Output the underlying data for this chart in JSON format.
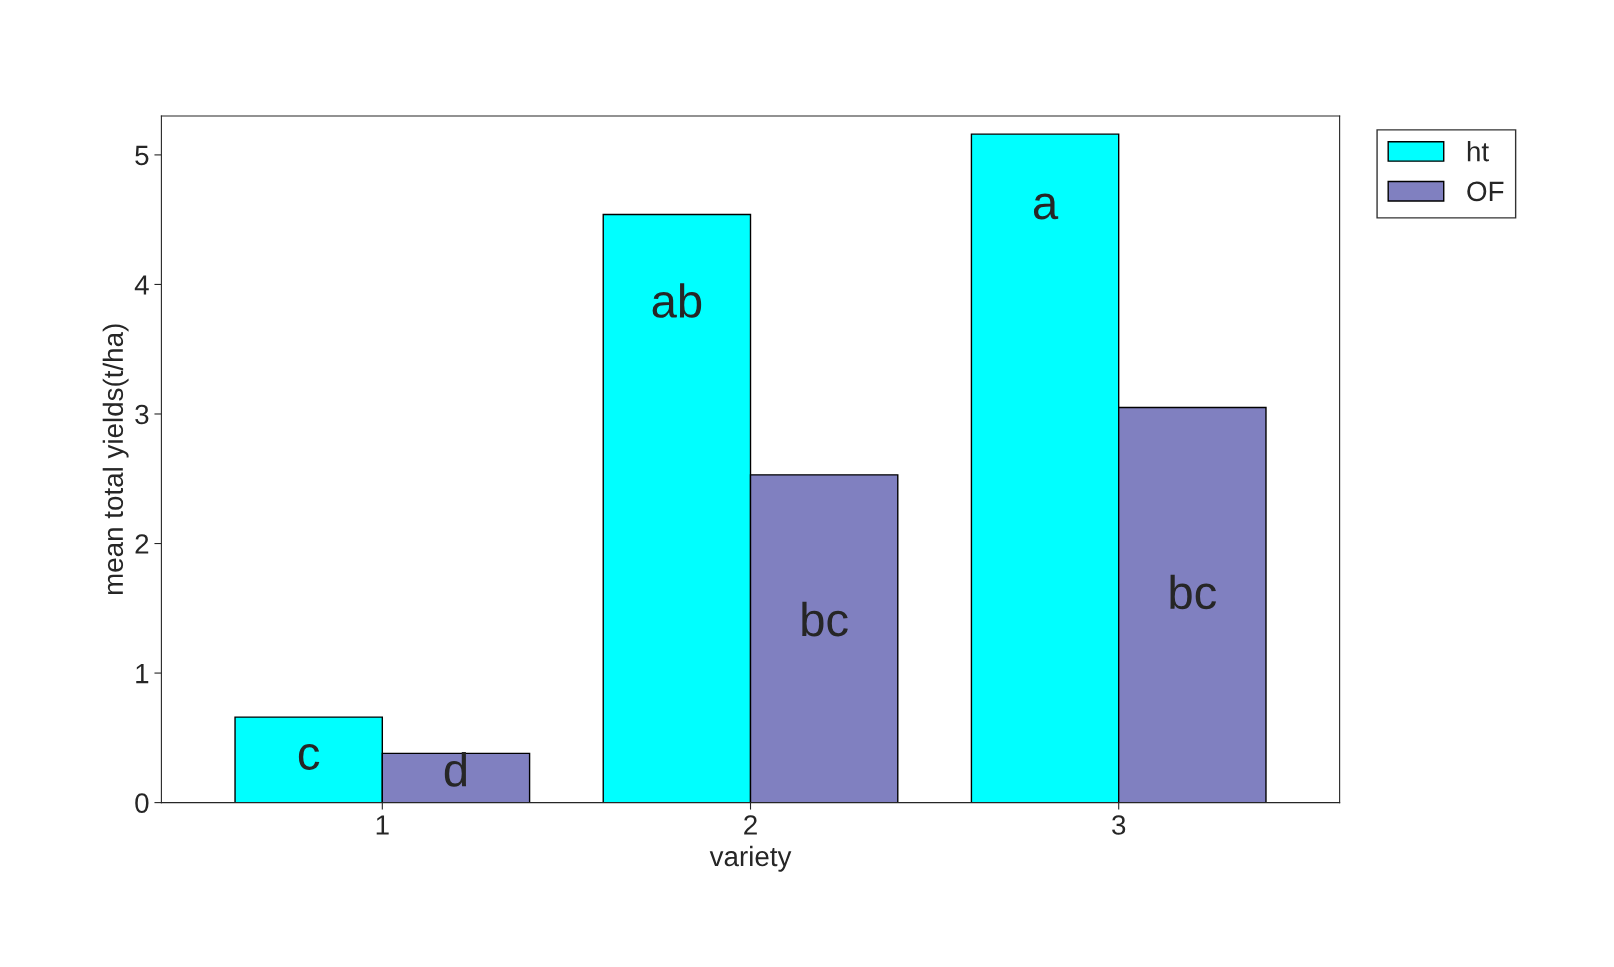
{
  "chart_data": {
    "type": "bar",
    "xlabel": "variety",
    "ylabel": "mean total yields(t/ha)",
    "categories": [
      "1",
      "2",
      "3"
    ],
    "series": [
      {
        "name": "ht",
        "color": "#00ffff",
        "values": [
          0.66,
          4.54,
          5.16
        ]
      },
      {
        "name": "OF",
        "color": "#8080c0",
        "values": [
          0.38,
          2.53,
          3.05
        ]
      }
    ],
    "ylim": [
      0,
      5.3
    ],
    "yticks": [
      0,
      1,
      2,
      3,
      4,
      5
    ],
    "grid": false,
    "legend": "top right",
    "annotations": [
      {
        "text": "c",
        "x": "1",
        "y": 0.35
      },
      {
        "text": "d",
        "x": "1",
        "y": 0.22
      },
      {
        "text": "ab",
        "x": "2",
        "y": 3.84
      },
      {
        "text": "bc",
        "x": "2",
        "y": 1.38
      },
      {
        "text": "a",
        "x": "3",
        "y": 4.6
      },
      {
        "text": "bc",
        "x": "3",
        "y": 1.59
      }
    ]
  }
}
